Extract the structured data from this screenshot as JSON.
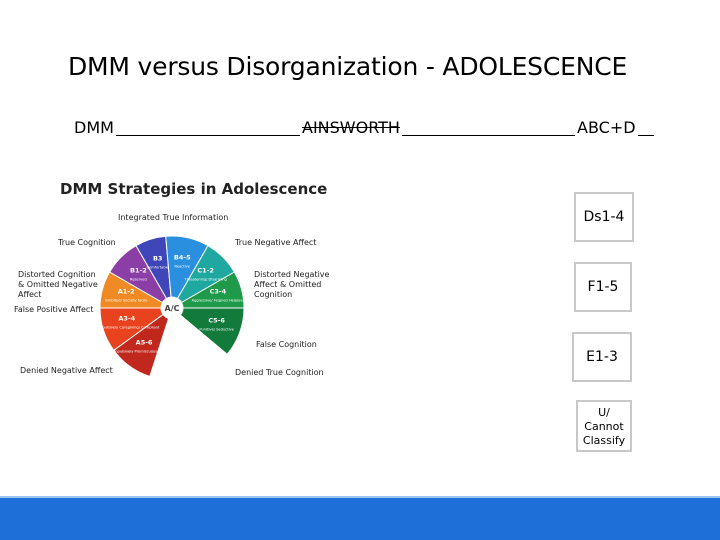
{
  "title": "DMM versus Disorganization - ADOLESCENCE",
  "headers": {
    "dmm": "DMM",
    "ainsworth": "AINSWORTH",
    "abcd": "ABC+D"
  },
  "diagram": {
    "title": "DMM Strategies in Adolescence",
    "center": "A/C",
    "outer_labels": {
      "integrated": "Integrated True Information",
      "true_cognition": "True Cognition",
      "true_negative_affect": "True Negative Affect",
      "distorted_cognition": "Distorted Cognition & Omitted Negative Affect",
      "distorted_negative_affect": "Distorted Negative Affect & Omitted Cognition",
      "false_positive_affect": "False Positive Affect",
      "false_cognition": "False Cognition",
      "denied_negative_affect": "Denied Negative Affect",
      "denied_true_cognition": "Denied True Cognition"
    },
    "segments": [
      {
        "code": "A5-6",
        "sub": "Compulsively Promiscuous/ Self-reliant",
        "color": "#c0281e"
      },
      {
        "code": "A3-4",
        "sub": "Compulsively Caregiving/ Compliant",
        "color": "#e8431e"
      },
      {
        "code": "A1-2",
        "sub": "Inhibited/ Socially facile",
        "color": "#f08a24"
      },
      {
        "code": "B1-2",
        "sub": "Reserved",
        "color": "#8b3fa6"
      },
      {
        "code": "B3",
        "sub": "Comfortable",
        "color": "#3f46b8"
      },
      {
        "code": "B4-5",
        "sub": "Reactive",
        "color": "#2b8fe0"
      },
      {
        "code": "C1-2",
        "sub": "Threatening/ Disarming",
        "color": "#1fa8a0"
      },
      {
        "code": "C3-4",
        "sub": "Aggressive/ Feigned Helpless",
        "color": "#1f9a4a"
      },
      {
        "code": "C5-6",
        "sub": "Punitive/ Seductive",
        "color": "#127a3a"
      }
    ]
  },
  "boxes": [
    {
      "label": "Ds1-4"
    },
    {
      "label": "F1-5"
    },
    {
      "label": "E1-3"
    },
    {
      "lines": [
        "U/",
        "Cannot",
        "Classify"
      ]
    }
  ],
  "colors": {
    "bottom_bar": "#1f6fd8"
  }
}
